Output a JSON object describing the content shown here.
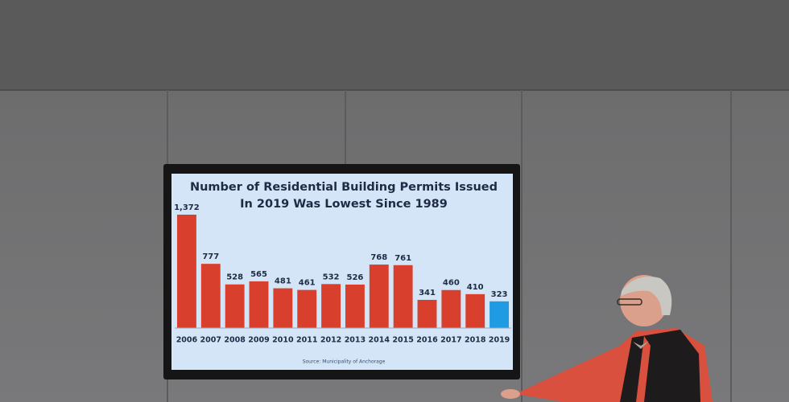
{
  "chart_data": {
    "type": "bar",
    "title": [
      "Number of Residential Building Permits Issued",
      "In 2019 Was Lowest Since 1989"
    ],
    "categories": [
      "2006",
      "2007",
      "2008",
      "2009",
      "2010",
      "2011",
      "2012",
      "2013",
      "2014",
      "2015",
      "2016",
      "2017",
      "2018",
      "2019"
    ],
    "values": [
      1372,
      777,
      528,
      565,
      481,
      461,
      532,
      526,
      768,
      761,
      341,
      460,
      410,
      323
    ],
    "value_labels": [
      "1,372",
      "777",
      "528",
      "565",
      "481",
      "461",
      "532",
      "526",
      "768",
      "761",
      "341",
      "460",
      "410",
      "323"
    ],
    "colors": [
      "#d8402d",
      "#d8402d",
      "#d8402d",
      "#d8402d",
      "#d8402d",
      "#d8402d",
      "#d8402d",
      "#d8402d",
      "#d8402d",
      "#d8402d",
      "#d8402d",
      "#d8402d",
      "#d8402d",
      "#1e9be3"
    ],
    "source": "Source: Municipality of Anchorage"
  }
}
